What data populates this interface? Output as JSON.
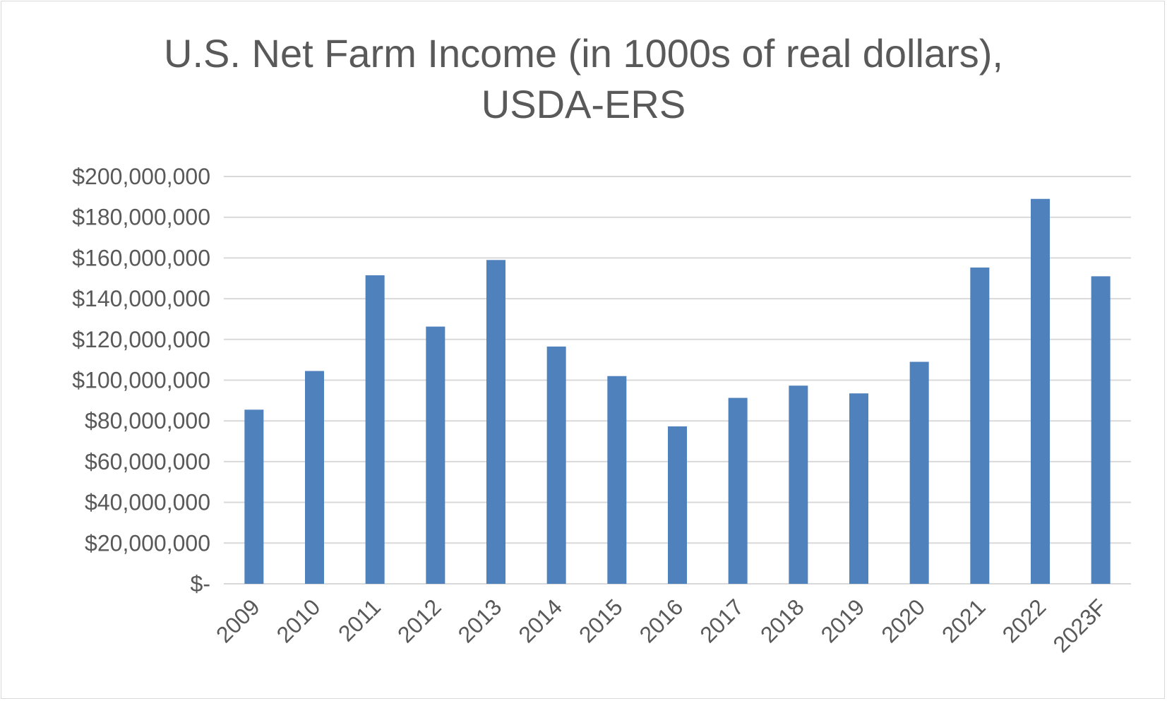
{
  "chart_data": {
    "type": "bar",
    "title_line1": "U.S. Net Farm Income (in 1000s of real dollars),",
    "title_line2": "USDA-ERS",
    "xlabel": "",
    "ylabel": "",
    "ylim": [
      0,
      200000000
    ],
    "y_ticks": [
      {
        "value": 200000000,
        "label": "$200,000,000"
      },
      {
        "value": 180000000,
        "label": "$180,000,000"
      },
      {
        "value": 160000000,
        "label": "$160,000,000"
      },
      {
        "value": 140000000,
        "label": "$140,000,000"
      },
      {
        "value": 120000000,
        "label": "$120,000,000"
      },
      {
        "value": 100000000,
        "label": "$100,000,000"
      },
      {
        "value": 80000000,
        "label": "$80,000,000"
      },
      {
        "value": 60000000,
        "label": "$60,000,000"
      },
      {
        "value": 40000000,
        "label": "$40,000,000"
      },
      {
        "value": 20000000,
        "label": "$20,000,000"
      },
      {
        "value": 0,
        "label": "$-"
      }
    ],
    "categories": [
      "2009",
      "2010",
      "2011",
      "2012",
      "2013",
      "2014",
      "2015",
      "2016",
      "2017",
      "2018",
      "2019",
      "2020",
      "2021",
      "2022",
      "2023F"
    ],
    "values": [
      85500000,
      104500000,
      151500000,
      126300000,
      159000000,
      116500000,
      102000000,
      77300000,
      91300000,
      97300000,
      93500000,
      109000000,
      155300000,
      189000000,
      151000000
    ],
    "grid": true,
    "bar_color": "#4f81bd",
    "grid_color": "#d9d9d9",
    "text_color": "#595959"
  }
}
